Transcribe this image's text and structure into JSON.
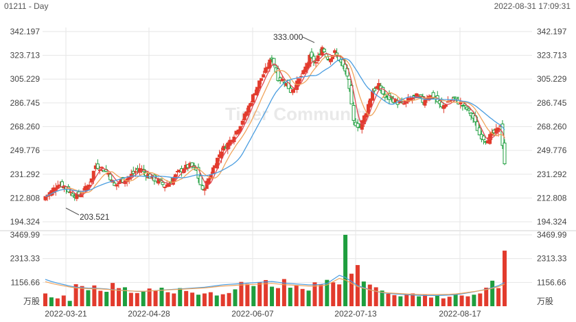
{
  "header": {
    "symbol_period": "01211 - Day",
    "timestamp": "2022-08-31 17:09:31"
  },
  "watermark": "Tiger Community",
  "colors": {
    "up": "#e23b2d",
    "down": "#1e9e3e",
    "ma5": "#e0464f",
    "ma10": "#f0a35b",
    "ma20": "#4a9de0",
    "grid": "#e6e6e6"
  },
  "chart_data": {
    "type": "candlestick",
    "price_axis": {
      "ticks": [
        "342.197",
        "323.713",
        "305.229",
        "286.745",
        "268.260",
        "249.776",
        "231.292",
        "212.808",
        "194.324"
      ],
      "range": [
        194.324,
        342.197
      ]
    },
    "volume_axis": {
      "ticks": [
        "3469.99",
        "2313.33",
        "1156.66"
      ],
      "unit": "万股",
      "range": [
        0,
        3469.99
      ]
    },
    "x_ticks": [
      "2022-03-21",
      "2022-04-28",
      "2022-06-07",
      "2022-07-13",
      "2022-08-17"
    ],
    "annotations": {
      "high": "333.000",
      "low": "203.521"
    },
    "close_path": [
      [
        0,
        214
      ],
      [
        3,
        218
      ],
      [
        6,
        224
      ],
      [
        9,
        222
      ],
      [
        12,
        217
      ],
      [
        15,
        214
      ],
      [
        18,
        218
      ],
      [
        21,
        224
      ],
      [
        24,
        238
      ],
      [
        27,
        236
      ],
      [
        30,
        232
      ],
      [
        33,
        222
      ],
      [
        36,
        226
      ],
      [
        39,
        228
      ],
      [
        42,
        232
      ],
      [
        45,
        236
      ],
      [
        48,
        232
      ],
      [
        51,
        228
      ],
      [
        54,
        226
      ],
      [
        57,
        222
      ],
      [
        60,
        226
      ],
      [
        63,
        232
      ],
      [
        66,
        236
      ],
      [
        69,
        238
      ],
      [
        72,
        234
      ],
      [
        75,
        218
      ],
      [
        78,
        228
      ],
      [
        81,
        240
      ],
      [
        84,
        250
      ],
      [
        87,
        255
      ],
      [
        90,
        262
      ],
      [
        93,
        270
      ],
      [
        96,
        280
      ],
      [
        99,
        292
      ],
      [
        102,
        303
      ],
      [
        105,
        312
      ],
      [
        108,
        322
      ],
      [
        111,
        306
      ],
      [
        114,
        304
      ],
      [
        117,
        296
      ],
      [
        120,
        302
      ],
      [
        123,
        310
      ],
      [
        126,
        322
      ],
      [
        129,
        318
      ],
      [
        132,
        330
      ],
      [
        135,
        321
      ],
      [
        138,
        326
      ],
      [
        141,
        318
      ],
      [
        144,
        308
      ],
      [
        147,
        272
      ],
      [
        150,
        268
      ],
      [
        153,
        280
      ],
      [
        156,
        296
      ],
      [
        159,
        300
      ],
      [
        162,
        291
      ],
      [
        165,
        290
      ],
      [
        168,
        287
      ],
      [
        171,
        286
      ],
      [
        174,
        290
      ],
      [
        177,
        292
      ],
      [
        180,
        288
      ],
      [
        183,
        293
      ],
      [
        186,
        290
      ],
      [
        189,
        283
      ],
      [
        192,
        288
      ],
      [
        195,
        290
      ],
      [
        198,
        286
      ],
      [
        201,
        282
      ],
      [
        204,
        275
      ],
      [
        207,
        262
      ],
      [
        210,
        258
      ],
      [
        213,
        262
      ],
      [
        216,
        266
      ],
      [
        217,
        270
      ],
      [
        219,
        240
      ]
    ],
    "volume_series": [
      620,
      430,
      380,
      520,
      260,
      1070,
      980,
      780,
      1010,
      750,
      700,
      1130,
      880,
      920,
      650,
      640,
      710,
      860,
      760,
      900,
      680,
      620,
      880,
      740,
      660,
      560,
      620,
      680,
      520,
      580,
      640,
      820,
      1180,
      1080,
      980,
      1160,
      1270,
      950,
      880,
      1320,
      900,
      1020,
      840,
      760,
      1160,
      1050,
      1280,
      1160,
      1060,
      3470,
      1580,
      2000,
      1200,
      1050,
      920,
      760,
      600,
      540,
      480,
      560,
      620,
      480,
      560,
      420,
      520,
      380,
      460,
      600,
      520,
      480,
      560,
      620,
      900,
      1240,
      880,
      2700
    ],
    "ma_vol_series": [
      1300,
      1200,
      1120,
      1050,
      980,
      920,
      900,
      880,
      870,
      860,
      840,
      800,
      780,
      760,
      740,
      720,
      720,
      740,
      760,
      780,
      800,
      820,
      840,
      860,
      880,
      900,
      920,
      960,
      1000,
      1040,
      1060,
      1080,
      1100,
      1120,
      1140,
      1160,
      1180,
      1200,
      1160,
      1120,
      1100,
      1080,
      1060,
      1040,
      1040,
      1060,
      1100,
      1300,
      1500,
      1400,
      1200,
      1000,
      900,
      800,
      720,
      660,
      620,
      600,
      580,
      560,
      540,
      530,
      520,
      520,
      520,
      530,
      540,
      560,
      600,
      650,
      700,
      760,
      820,
      900,
      1000,
      1150
    ]
  }
}
